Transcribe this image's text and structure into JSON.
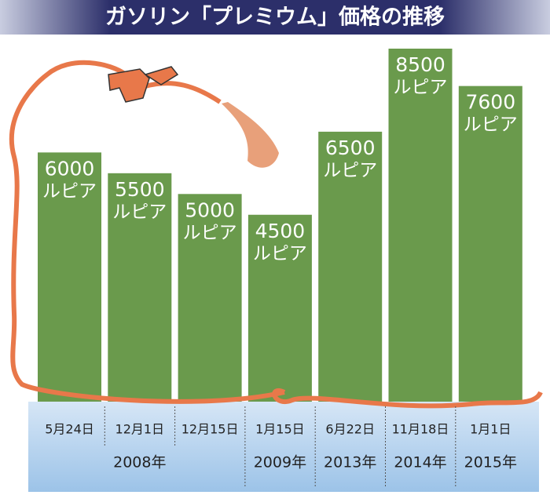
{
  "chart_data": {
    "type": "bar",
    "title": "ガソリン「プレミウム」価格の推移",
    "categories": [
      "5月24日",
      "12月1日",
      "12月15日",
      "1月15日",
      "6月22日",
      "11月18日",
      "1月1日"
    ],
    "years": [
      "2008年",
      null,
      null,
      "2009年",
      "2013年",
      "2014年",
      "2015年"
    ],
    "values": [
      6000,
      5500,
      5000,
      4500,
      6500,
      8500,
      7600
    ],
    "unit": "ルピア",
    "color": "#6a9a4c"
  }
}
